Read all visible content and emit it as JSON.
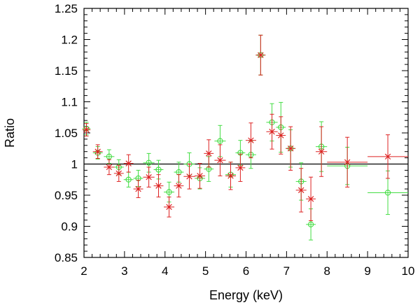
{
  "chart_data": {
    "type": "scatter",
    "title": "",
    "xlabel": "Energy (keV)",
    "ylabel": "Ratio",
    "xlim": [
      2,
      10
    ],
    "ylim": [
      0.85,
      1.25
    ],
    "x_ticks": [
      "2",
      "3",
      "4",
      "5",
      "6",
      "7",
      "8",
      "9",
      "10"
    ],
    "y_ticks": [
      "0.85",
      "0.9",
      "0.95",
      "1",
      "1.05",
      "1.1",
      "1.15",
      "1.2",
      "1.25"
    ],
    "reference_line": {
      "y": 1.0,
      "color": "#000000"
    },
    "series": [
      {
        "name": "green-circles",
        "marker": "circle",
        "color": "#44dd44",
        "points": [
          {
            "x": 2.06,
            "xerr": 0.1,
            "y": 1.057,
            "yerr": 0.01
          },
          {
            "x": 2.34,
            "xerr": 0.12,
            "y": 1.018,
            "yerr": 0.01
          },
          {
            "x": 2.62,
            "xerr": 0.13,
            "y": 1.012,
            "yerr": 0.011
          },
          {
            "x": 2.86,
            "xerr": 0.12,
            "y": 0.995,
            "yerr": 0.012
          },
          {
            "x": 3.1,
            "xerr": 0.12,
            "y": 0.975,
            "yerr": 0.012
          },
          {
            "x": 3.34,
            "xerr": 0.12,
            "y": 0.977,
            "yerr": 0.013
          },
          {
            "x": 3.6,
            "xerr": 0.14,
            "y": 1.002,
            "yerr": 0.015
          },
          {
            "x": 3.84,
            "xerr": 0.12,
            "y": 0.991,
            "yerr": 0.015
          },
          {
            "x": 4.1,
            "xerr": 0.13,
            "y": 0.955,
            "yerr": 0.016
          },
          {
            "x": 4.34,
            "xerr": 0.12,
            "y": 0.987,
            "yerr": 0.016
          },
          {
            "x": 4.6,
            "xerr": 0.14,
            "y": 1.0,
            "yerr": 0.018
          },
          {
            "x": 4.86,
            "xerr": 0.13,
            "y": 0.977,
            "yerr": 0.017
          },
          {
            "x": 5.08,
            "xerr": 0.12,
            "y": 0.992,
            "yerr": 0.02
          },
          {
            "x": 5.36,
            "xerr": 0.14,
            "y": 1.037,
            "yerr": 0.025
          },
          {
            "x": 5.62,
            "xerr": 0.13,
            "y": 0.983,
            "yerr": 0.02
          },
          {
            "x": 5.86,
            "xerr": 0.12,
            "y": 1.018,
            "yerr": 0.02
          },
          {
            "x": 6.12,
            "xerr": 0.13,
            "y": 1.015,
            "yerr": 0.022
          },
          {
            "x": 6.36,
            "xerr": 0.12,
            "y": 1.175,
            "yerr": 0.032
          },
          {
            "x": 6.64,
            "xerr": 0.14,
            "y": 1.067,
            "yerr": 0.03
          },
          {
            "x": 6.86,
            "xerr": 0.12,
            "y": 1.059,
            "yerr": 0.04
          },
          {
            "x": 7.1,
            "xerr": 0.12,
            "y": 1.025,
            "yerr": 0.03
          },
          {
            "x": 7.36,
            "xerr": 0.13,
            "y": 0.972,
            "yerr": 0.03
          },
          {
            "x": 7.6,
            "xerr": 0.12,
            "y": 0.903,
            "yerr": 0.025
          },
          {
            "x": 7.86,
            "xerr": 0.14,
            "y": 1.028,
            "yerr": 0.04
          },
          {
            "x": 8.5,
            "xerr": 0.5,
            "y": 0.997,
            "yerr": 0.03
          },
          {
            "x": 9.5,
            "xerr": 0.5,
            "y": 0.954,
            "yerr": 0.035
          }
        ]
      },
      {
        "name": "red-crosses",
        "marker": "x",
        "color": "#dd2222",
        "points": [
          {
            "x": 2.06,
            "xerr": 0.1,
            "y": 1.055,
            "yerr": 0.01
          },
          {
            "x": 2.34,
            "xerr": 0.12,
            "y": 1.02,
            "yerr": 0.011
          },
          {
            "x": 2.62,
            "xerr": 0.13,
            "y": 0.995,
            "yerr": 0.012
          },
          {
            "x": 2.86,
            "xerr": 0.12,
            "y": 0.985,
            "yerr": 0.013
          },
          {
            "x": 3.1,
            "xerr": 0.12,
            "y": 1.001,
            "yerr": 0.014
          },
          {
            "x": 3.34,
            "xerr": 0.12,
            "y": 0.96,
            "yerr": 0.014
          },
          {
            "x": 3.6,
            "xerr": 0.14,
            "y": 0.979,
            "yerr": 0.016
          },
          {
            "x": 3.84,
            "xerr": 0.12,
            "y": 0.965,
            "yerr": 0.018
          },
          {
            "x": 4.1,
            "xerr": 0.13,
            "y": 0.931,
            "yerr": 0.016
          },
          {
            "x": 4.34,
            "xerr": 0.12,
            "y": 0.965,
            "yerr": 0.018
          },
          {
            "x": 4.6,
            "xerr": 0.14,
            "y": 0.98,
            "yerr": 0.02
          },
          {
            "x": 4.86,
            "xerr": 0.13,
            "y": 0.981,
            "yerr": 0.02
          },
          {
            "x": 5.08,
            "xerr": 0.12,
            "y": 1.017,
            "yerr": 0.022
          },
          {
            "x": 5.36,
            "xerr": 0.14,
            "y": 1.006,
            "yerr": 0.025
          },
          {
            "x": 5.62,
            "xerr": 0.13,
            "y": 0.981,
            "yerr": 0.022
          },
          {
            "x": 5.86,
            "xerr": 0.12,
            "y": 0.994,
            "yerr": 0.022
          },
          {
            "x": 6.12,
            "xerr": 0.13,
            "y": 1.038,
            "yerr": 0.028
          },
          {
            "x": 6.36,
            "xerr": 0.12,
            "y": 1.175,
            "yerr": 0.032
          },
          {
            "x": 6.64,
            "xerr": 0.14,
            "y": 1.052,
            "yerr": 0.028
          },
          {
            "x": 6.86,
            "xerr": 0.12,
            "y": 1.046,
            "yerr": 0.03
          },
          {
            "x": 7.1,
            "xerr": 0.12,
            "y": 1.025,
            "yerr": 0.035
          },
          {
            "x": 7.36,
            "xerr": 0.13,
            "y": 0.958,
            "yerr": 0.035
          },
          {
            "x": 7.6,
            "xerr": 0.12,
            "y": 0.944,
            "yerr": 0.035
          },
          {
            "x": 7.86,
            "xerr": 0.14,
            "y": 1.02,
            "yerr": 0.04
          },
          {
            "x": 8.5,
            "xerr": 0.5,
            "y": 1.003,
            "yerr": 0.04
          },
          {
            "x": 9.5,
            "xerr": 0.5,
            "y": 1.012,
            "yerr": 0.035
          }
        ]
      }
    ]
  }
}
